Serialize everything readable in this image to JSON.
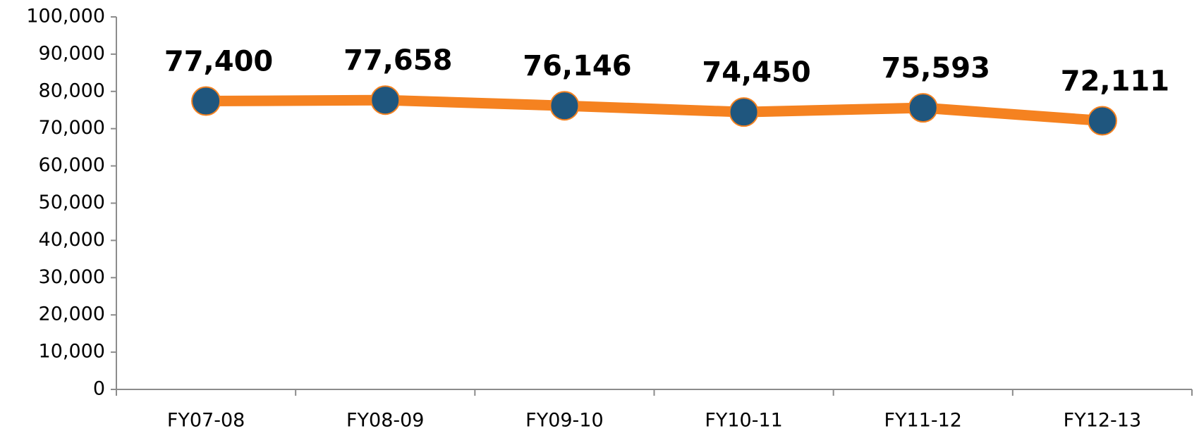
{
  "chart_data": {
    "type": "line",
    "categories": [
      "FY07-08",
      "FY08-09",
      "FY09-10",
      "FY10-11",
      "FY11-12",
      "FY12-13"
    ],
    "series": [
      {
        "name": null,
        "color": "#f58220",
        "marker_color": "#1f567e",
        "values": [
          77400,
          77658,
          76146,
          74450,
          75593,
          72111
        ],
        "value_labels": [
          "77,400",
          "77,658",
          "76,146",
          "74,450",
          "75,593",
          "72,111"
        ]
      }
    ],
    "ylim": [
      0,
      100000
    ],
    "yticks": [
      0,
      {
        "value": 10000,
        "label": "10,000"
      },
      {
        "value": 20000,
        "label": "20,000"
      },
      {
        "value": 30000,
        "label": "30,000"
      },
      {
        "value": 40000,
        "label": "40,000"
      },
      {
        "value": 50000,
        "label": "50,000"
      },
      {
        "value": 60000,
        "label": "60,000"
      },
      {
        "value": 70000,
        "label": "70,000"
      },
      {
        "value": 80000,
        "label": "80,000"
      },
      {
        "value": 90000,
        "label": "90,000"
      },
      {
        "value": 100000,
        "label": "100,000"
      }
    ],
    "grid": false
  }
}
